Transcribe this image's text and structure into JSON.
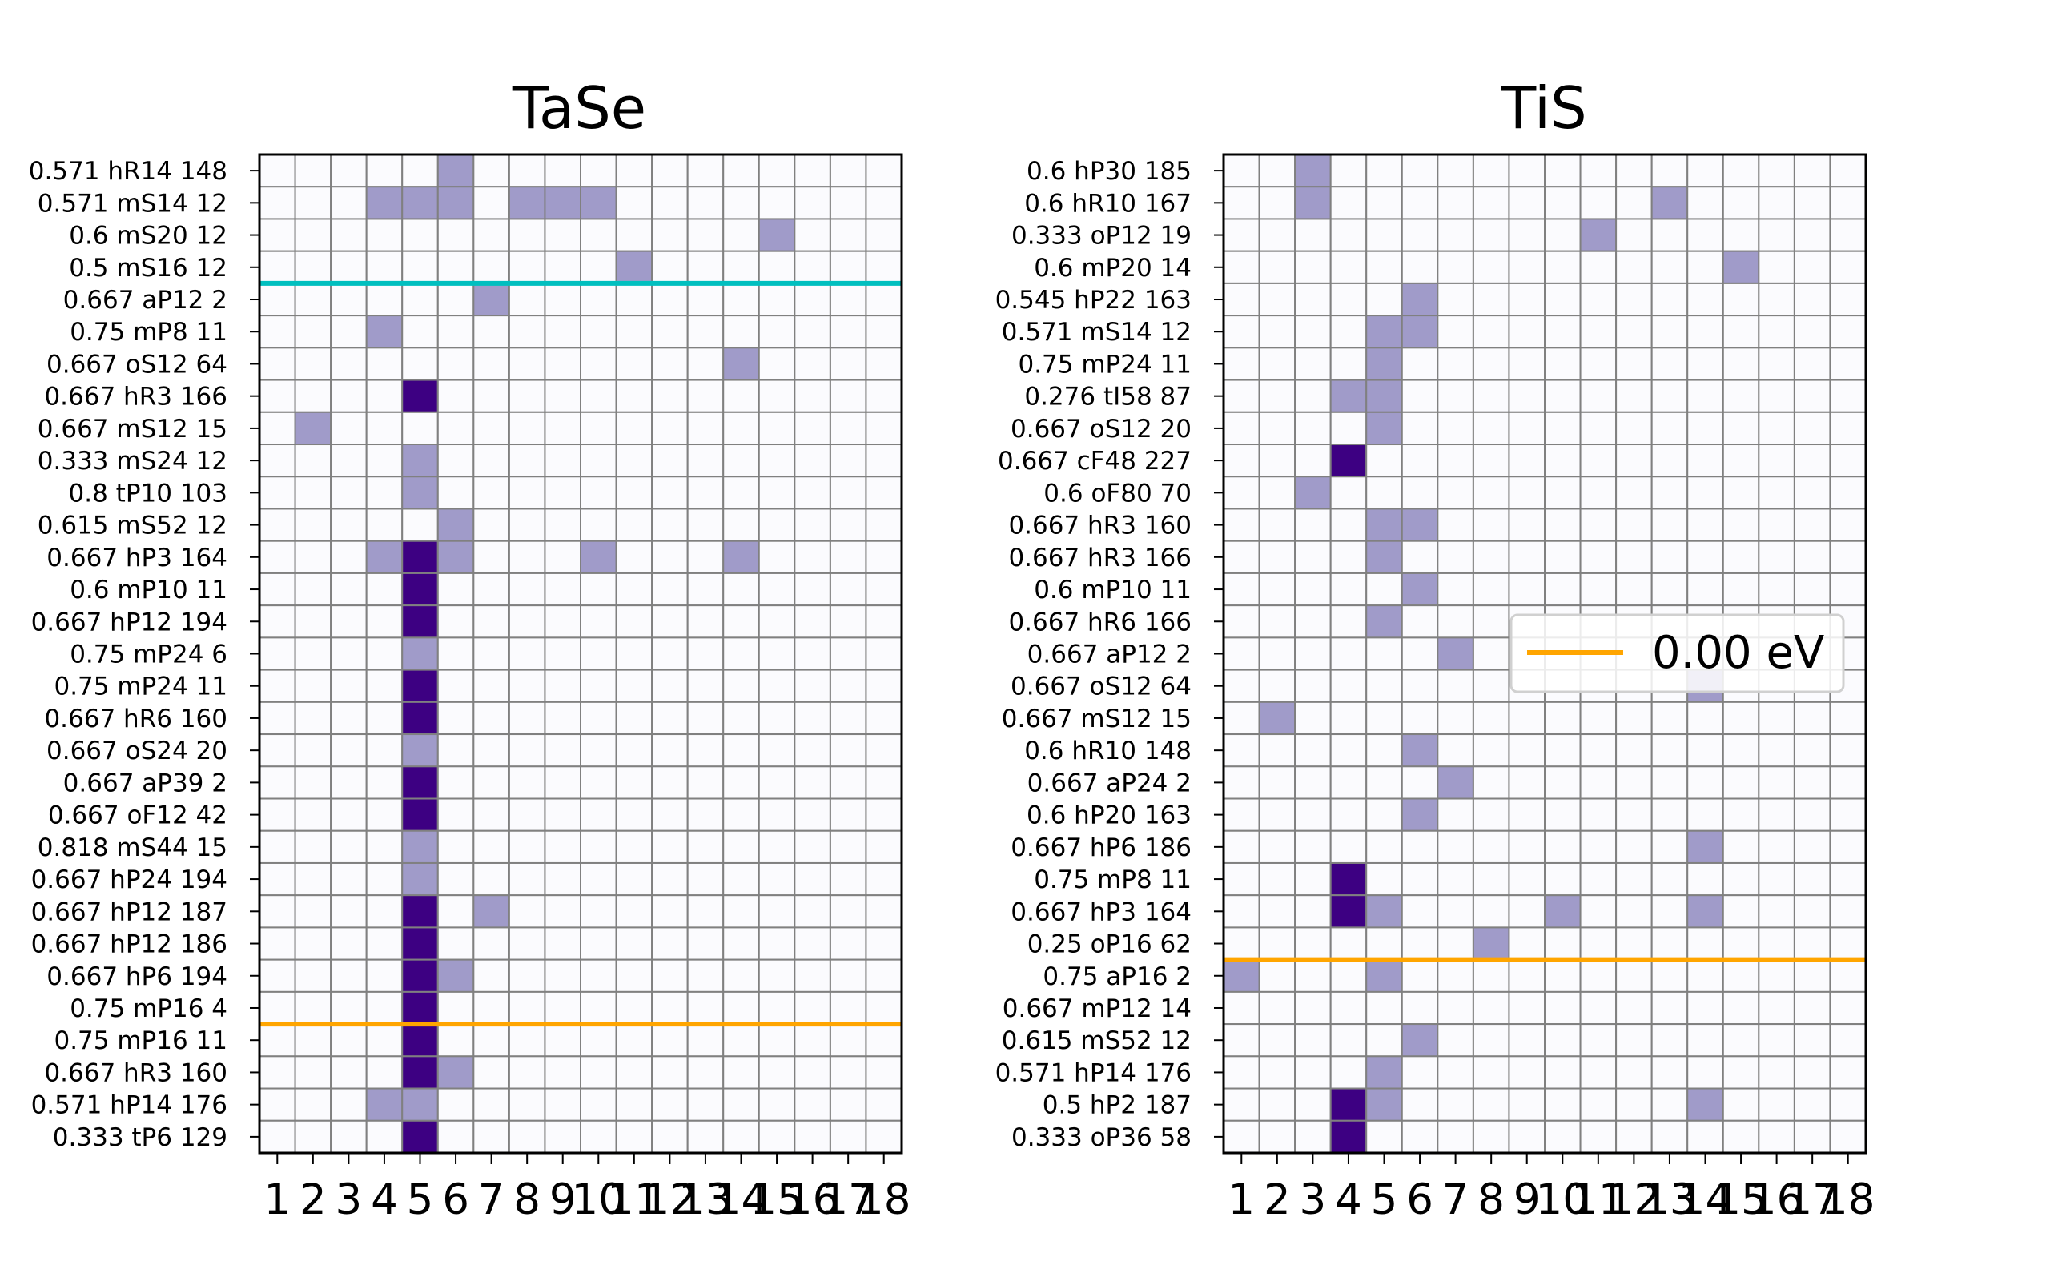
{
  "chart_data": [
    {
      "type": "heatmap",
      "title": "TaSe",
      "x_ticks": [
        "1",
        "2",
        "3",
        "4",
        "5",
        "6",
        "7",
        "8",
        "9",
        "10",
        "11",
        "12",
        "13",
        "14",
        "15",
        "16",
        "17",
        "18"
      ],
      "y_labels": [
        "0.571 hR14 148",
        "0.571 mS14 12",
        "0.6 mS20 12",
        "0.5 mS16 12",
        "0.667 aP12 2",
        "0.75 mP8 11",
        "0.667 oS12 64",
        "0.667 hR3 166",
        "0.667 mS12 15",
        "0.333 mS24 12",
        "0.8 tP10 103",
        "0.615 mS52 12",
        "0.667 hP3 164",
        "0.6 mP10 11",
        "0.667 hP12 194",
        "0.75 mP24 6",
        "0.75 mP24 11",
        "0.667 hR6 160",
        "0.667 oS24 20",
        "0.667 aP39 2",
        "0.667 oF12 42",
        "0.818 mS44 15",
        "0.667 hP24 194",
        "0.667 hP12 187",
        "0.667 hP12 186",
        "0.667 hP6 194",
        "0.75 mP16 4",
        "0.75 mP16 11",
        "0.667 hR3 160",
        "0.571 hP14 176",
        "0.333 tP6 129"
      ],
      "cells_light": [
        [
          0,
          6
        ],
        [
          1,
          4
        ],
        [
          1,
          5
        ],
        [
          1,
          6
        ],
        [
          1,
          8
        ],
        [
          1,
          9
        ],
        [
          1,
          10
        ],
        [
          2,
          15
        ],
        [
          3,
          11
        ],
        [
          4,
          7
        ],
        [
          5,
          4
        ],
        [
          6,
          14
        ],
        [
          8,
          2
        ],
        [
          9,
          5
        ],
        [
          10,
          5
        ],
        [
          11,
          6
        ],
        [
          12,
          4
        ],
        [
          12,
          6
        ],
        [
          12,
          10
        ],
        [
          12,
          14
        ],
        [
          15,
          5
        ],
        [
          18,
          5
        ],
        [
          21,
          5
        ],
        [
          22,
          5
        ],
        [
          23,
          7
        ],
        [
          25,
          6
        ],
        [
          28,
          6
        ],
        [
          29,
          4
        ],
        [
          29,
          5
        ]
      ],
      "cells_dark": [
        [
          7,
          5
        ],
        [
          12,
          5
        ],
        [
          13,
          5
        ],
        [
          14,
          5
        ],
        [
          16,
          5
        ],
        [
          17,
          5
        ],
        [
          19,
          5
        ],
        [
          20,
          5
        ],
        [
          23,
          5
        ],
        [
          24,
          5
        ],
        [
          25,
          5
        ],
        [
          26,
          5
        ],
        [
          27,
          5
        ],
        [
          28,
          5
        ],
        [
          30,
          5
        ]
      ],
      "hlines": [
        {
          "after_row": 3.5,
          "color": "#00bfbf"
        },
        {
          "after_row": 26.5,
          "color": "#ffa500"
        }
      ]
    },
    {
      "type": "heatmap",
      "title": "TiS",
      "x_ticks": [
        "1",
        "2",
        "3",
        "4",
        "5",
        "6",
        "7",
        "8",
        "9",
        "10",
        "11",
        "12",
        "13",
        "14",
        "15",
        "16",
        "17",
        "18"
      ],
      "y_labels": [
        "0.6 hP30 185",
        "0.6 hR10 167",
        "0.333 oP12 19",
        "0.6 mP20 14",
        "0.545 hP22 163",
        "0.571 mS14 12",
        "0.75 mP24 11",
        "0.276 tI58 87",
        "0.667 oS12 20",
        "0.667 cF48 227",
        "0.6 oF80 70",
        "0.667 hR3 160",
        "0.667 hR3 166",
        "0.6 mP10 11",
        "0.667 hR6 166",
        "0.667 aP12 2",
        "0.667 oS12 64",
        "0.667 mS12 15",
        "0.6 hR10 148",
        "0.667 aP24 2",
        "0.6 hP20 163",
        "0.667 hP6 186",
        "0.75 mP8 11",
        "0.667 hP3 164",
        "0.25 oP16 62",
        "0.75 aP16 2",
        "0.667 mP12 14",
        "0.615 mS52 12",
        "0.571 hP14 176",
        "0.5 hP2 187",
        "0.333 oP36 58"
      ],
      "cells_light": [
        [
          0,
          3
        ],
        [
          1,
          3
        ],
        [
          1,
          13
        ],
        [
          2,
          11
        ],
        [
          3,
          15
        ],
        [
          4,
          6
        ],
        [
          5,
          5
        ],
        [
          5,
          6
        ],
        [
          6,
          5
        ],
        [
          7,
          4
        ],
        [
          7,
          5
        ],
        [
          8,
          5
        ],
        [
          10,
          3
        ],
        [
          11,
          5
        ],
        [
          11,
          6
        ],
        [
          12,
          5
        ],
        [
          13,
          6
        ],
        [
          14,
          5
        ],
        [
          15,
          7
        ],
        [
          16,
          14
        ],
        [
          17,
          2
        ],
        [
          18,
          6
        ],
        [
          19,
          7
        ],
        [
          20,
          6
        ],
        [
          21,
          14
        ],
        [
          23,
          5
        ],
        [
          23,
          10
        ],
        [
          23,
          14
        ],
        [
          24,
          8
        ],
        [
          25,
          1
        ],
        [
          25,
          5
        ],
        [
          27,
          6
        ],
        [
          28,
          5
        ],
        [
          29,
          5
        ],
        [
          29,
          14
        ]
      ],
      "cells_dark": [
        [
          9,
          4
        ],
        [
          22,
          4
        ],
        [
          23,
          4
        ],
        [
          29,
          4
        ],
        [
          30,
          4
        ]
      ],
      "hlines": [
        {
          "after_row": 24.5,
          "color": "#ffa500"
        }
      ],
      "legend": {
        "label": "0.00 eV",
        "color": "#ffa500",
        "placement": "center-right"
      }
    }
  ],
  "colors": {
    "empty": "#fbfbfe",
    "light": "#a09bc9",
    "dark": "#3d0082",
    "grid": "#808080"
  }
}
